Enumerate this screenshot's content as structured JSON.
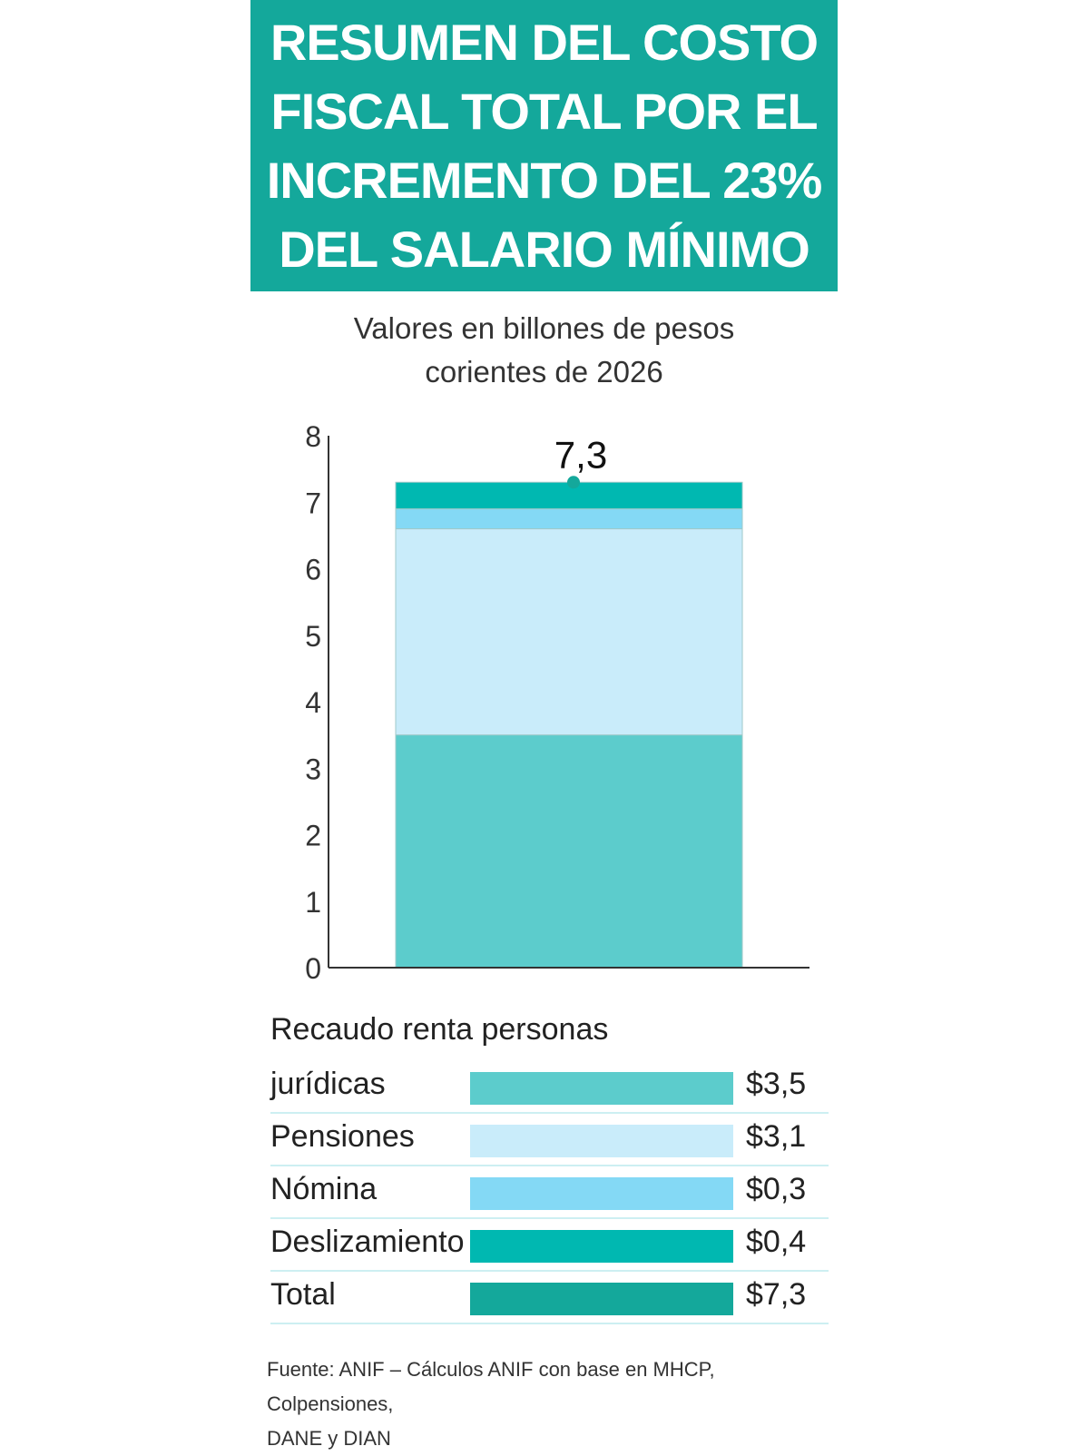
{
  "title_lines": [
    "RESUMEN DEL COSTO",
    "FISCAL TOTAL POR EL",
    "INCREMENTO DEL 23%",
    "DEL SALARIO MÍNIMO"
  ],
  "subtitle_lines": [
    "Valores en billones de pesos",
    "corientes de 2026"
  ],
  "chart_data": {
    "type": "bar",
    "stacked": true,
    "categories": [
      ""
    ],
    "series": [
      {
        "name": "Recaudo renta personas jurídicas",
        "values": [
          3.5
        ],
        "color": "#5ccccc"
      },
      {
        "name": "Pensiones",
        "values": [
          3.1
        ],
        "color": "#c9ecfa"
      },
      {
        "name": "Nómina",
        "values": [
          0.3
        ],
        "color": "#84d9f5"
      },
      {
        "name": "Deslizamiento",
        "values": [
          0.4
        ],
        "color": "#00b8b1"
      }
    ],
    "total": 7.3,
    "total_label": "7,3",
    "ylim": [
      0,
      8
    ],
    "yticks": [
      0,
      1,
      2,
      3,
      4,
      5,
      6,
      7,
      8
    ],
    "grid": false,
    "legend_placement": "bottom",
    "marker_color": "#14a89b"
  },
  "legend": {
    "title": "Recaudo renta personas",
    "rows": [
      {
        "label": "jurídicas",
        "value": "$3,5",
        "color": "#5ccccc"
      },
      {
        "label": "Pensiones",
        "value": "$3,1",
        "color": "#c9ecfa"
      },
      {
        "label": "Nómina",
        "value": "$0,3",
        "color": "#84d9f5"
      },
      {
        "label": "Deslizamiento",
        "value": "$0,4",
        "color": "#00b8b1"
      },
      {
        "label": "Total",
        "value": "$7,3",
        "color": "#14a89b"
      }
    ]
  },
  "source_lines": [
    "Fuente: ANIF – Cálculos ANIF con base en MHCP, Colpensiones,",
    "DANE y DIAN"
  ]
}
